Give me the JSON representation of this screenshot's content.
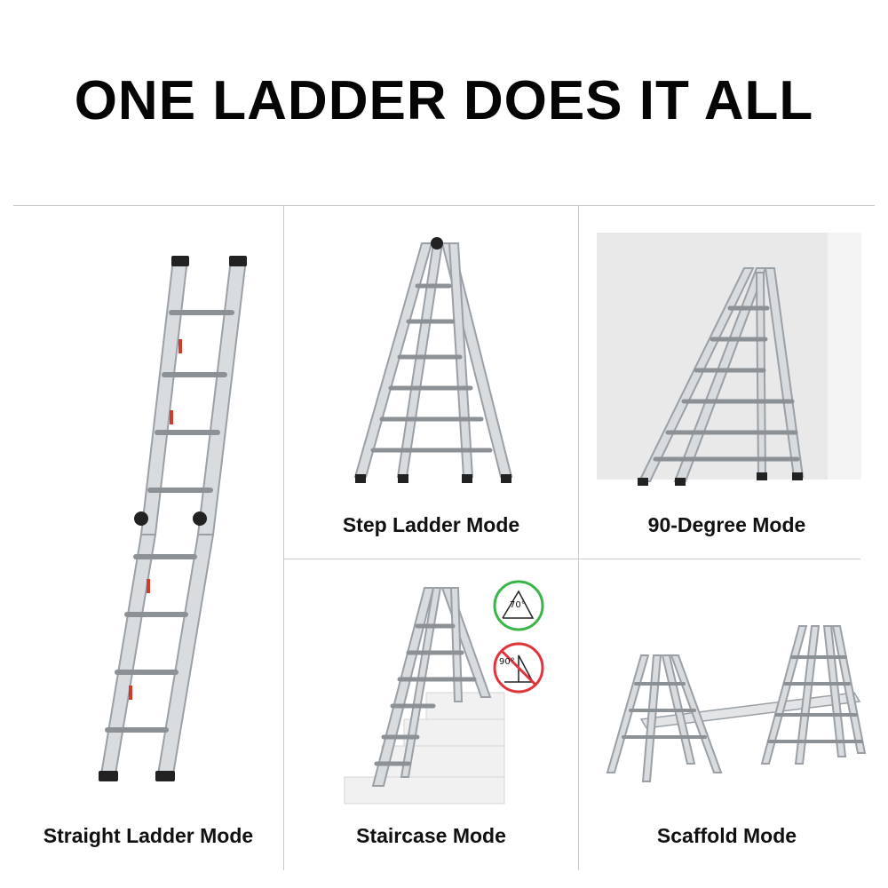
{
  "headline": "ONE LADDER DOES IT ALL",
  "panels": [
    {
      "id": "straight",
      "caption": "Straight Ladder Mode"
    },
    {
      "id": "step",
      "caption": "Step Ladder Mode"
    },
    {
      "id": "ninety",
      "caption": "90-Degree Mode"
    },
    {
      "id": "staircase",
      "caption": "Staircase Mode"
    },
    {
      "id": "scaffold",
      "caption": "Scaffold Mode"
    }
  ],
  "angle_badges": {
    "allowed": {
      "label": "70°",
      "status": "allowed",
      "color": "#3bb54a"
    },
    "forbidden": {
      "label": "90°",
      "status": "not-allowed",
      "color": "#e0343a"
    }
  }
}
